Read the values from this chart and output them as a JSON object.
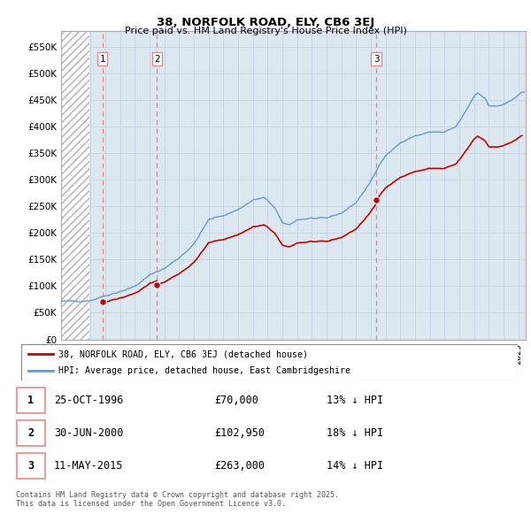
{
  "title_line1": "38, NORFOLK ROAD, ELY, CB6 3EJ",
  "title_line2": "Price paid vs. HM Land Registry's House Price Index (HPI)",
  "xlim_start": 1994.0,
  "xlim_end": 2025.5,
  "ylim_min": 0,
  "ylim_max": 580000,
  "yticks": [
    0,
    50000,
    100000,
    150000,
    200000,
    250000,
    300000,
    350000,
    400000,
    450000,
    500000,
    550000
  ],
  "ytick_labels": [
    "£0",
    "£50K",
    "£100K",
    "£150K",
    "£200K",
    "£250K",
    "£300K",
    "£350K",
    "£400K",
    "£450K",
    "£500K",
    "£550K"
  ],
  "grid_color": "#c8d8e8",
  "background_color": "#dce8f0",
  "hpi_color": "#6699cc",
  "price_color": "#cc0000",
  "vline_color": "#ee8888",
  "hatch_end_year": 1995.9,
  "transactions": [
    {
      "year": 1996.81,
      "price": 70000,
      "label": "1",
      "hpi_pct": "13% ↓ HPI",
      "date_str": "25-OCT-1996"
    },
    {
      "year": 2000.5,
      "price": 102950,
      "label": "2",
      "hpi_pct": "18% ↓ HPI",
      "date_str": "30-JUN-2000"
    },
    {
      "year": 2015.36,
      "price": 263000,
      "label": "3",
      "hpi_pct": "14% ↓ HPI",
      "date_str": "11-MAY-2015"
    }
  ],
  "legend_line1": "38, NORFOLK ROAD, ELY, CB6 3EJ (detached house)",
  "legend_line2": "HPI: Average price, detached house, East Cambridgeshire",
  "footnote": "Contains HM Land Registry data © Crown copyright and database right 2025.\nThis data is licensed under the Open Government Licence v3.0."
}
